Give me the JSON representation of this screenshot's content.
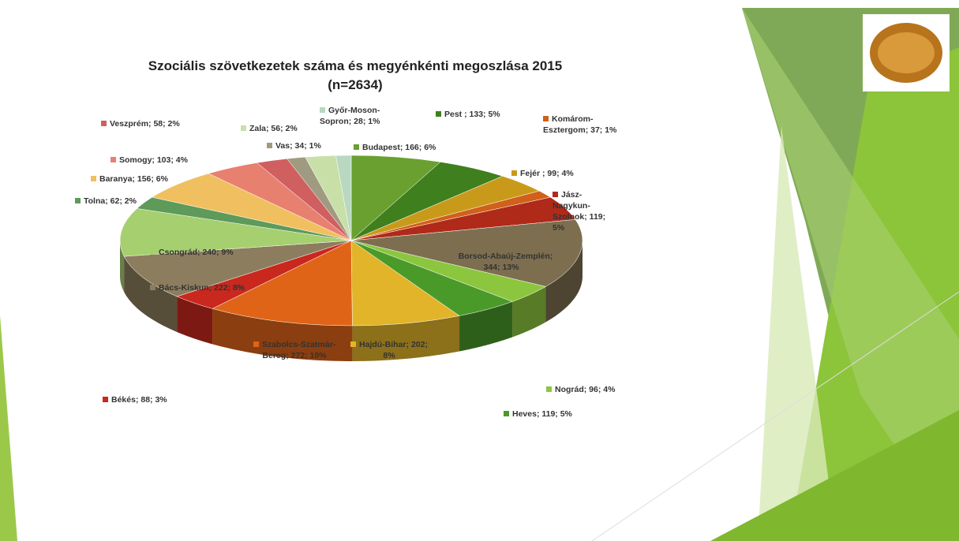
{
  "chart_data": {
    "type": "pie",
    "title": "Szociális szövetkezetek száma és megyénkénti megoszlása 2015 (n=2634)",
    "categories": [
      "Budapest",
      "Pest ",
      "Fejér ",
      "Komárom-Esztergom",
      "Jász-Nagykun-Szolnok",
      "Borsod-Abaúj-Zemplén",
      "Nográd",
      "Heves",
      "Hajdú-Bihar",
      "Szabolcs-Szatmár-Bereg",
      "Békés",
      "Bács-Kiskun",
      "Csongrád",
      "Tolna",
      "Baranya",
      "Somogy",
      "Veszprém",
      "Vas",
      "Zala",
      "Győr-Moson-Sopron"
    ],
    "values": [
      166,
      133,
      99,
      37,
      119,
      344,
      96,
      119,
      202,
      272,
      88,
      222,
      240,
      62,
      156,
      103,
      58,
      34,
      56,
      28
    ],
    "value_labels": [
      "; 166; 6%",
      "; 133; 5%",
      "; 99; 4%",
      "; 37; 1%",
      "; 119; 5%",
      "; 344; 13%",
      "; 96; 4%",
      "; 119; 5%",
      "; 202; 8%",
      "; 272; 10%",
      "; 88; 3%",
      "; 222; 8%",
      "; 240; 9%",
      "; 62; 2%",
      "; 156; 6%",
      "; 103; 4%",
      "; 58; 2%",
      "; 34; 1%",
      "; 56; 2%",
      "; 28; 1%"
    ],
    "colors": [
      "#6aa02f",
      "#3f7f1e",
      "#c99a1a",
      "#d0601a",
      "#b02a1a",
      "#7d6e50",
      "#8cc63f",
      "#4a9a2a",
      "#e2b42a",
      "#e06418",
      "#c9281e",
      "#8c7d5e",
      "#a6cf6f",
      "#5e9a5a",
      "#f0c060",
      "#e88070",
      "#d06060",
      "#a09a80",
      "#c8e0a8",
      "#b8d8c0"
    ]
  }
}
